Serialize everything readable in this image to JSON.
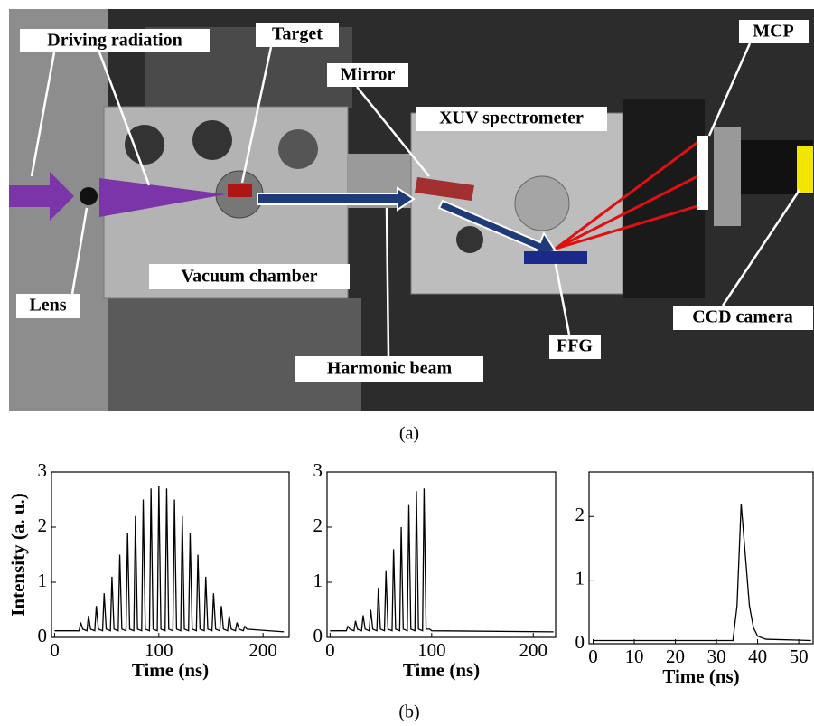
{
  "photo": {
    "labels": [
      "Driving  radiation",
      "Target",
      "Mirror",
      "XUV spectrometer",
      "MCP",
      "Lens",
      "Vacuum chamber",
      "CCD camera",
      "FFG",
      "Harmonic  beam"
    ]
  },
  "caption_a": "(a)",
  "caption_b": "(b)",
  "chart_data": [
    {
      "type": "line",
      "y_label": "Intensity (a. u.)",
      "x_label": "Time (ns)",
      "color": "#000000",
      "xlim": [
        -3,
        225
      ],
      "ylim": [
        0,
        3
      ],
      "xticks": [
        0,
        100,
        200
      ],
      "yticks": [
        0,
        1,
        2,
        3
      ],
      "x": [
        0,
        23.5,
        25,
        27,
        31,
        32.5,
        34.5,
        38.5,
        40,
        42,
        46,
        47.5,
        49.5,
        53.5,
        55,
        57,
        61,
        62.5,
        64.5,
        68.5,
        70,
        72,
        76,
        77.5,
        79.5,
        83.5,
        85,
        87,
        91,
        92.5,
        94.5,
        98.5,
        100,
        102,
        106,
        107.5,
        109.5,
        113.5,
        115,
        117,
        121,
        122.5,
        124.5,
        128.5,
        130,
        132,
        136,
        137.5,
        139.5,
        143.5,
        145,
        147,
        151,
        152.5,
        154.5,
        158.5,
        160,
        162,
        166,
        167.5,
        169.5,
        173.5,
        175,
        177,
        181,
        182.5,
        184.5,
        220
      ],
      "values": [
        0.12,
        0.12,
        0.27,
        0.15,
        0.12,
        0.39,
        0.15,
        0.12,
        0.57,
        0.15,
        0.12,
        0.8,
        0.15,
        0.12,
        1.1,
        0.15,
        0.12,
        1.5,
        0.15,
        0.12,
        1.9,
        0.15,
        0.12,
        2.2,
        0.15,
        0.12,
        2.5,
        0.15,
        0.12,
        2.7,
        0.15,
        0.12,
        2.75,
        0.15,
        0.12,
        2.7,
        0.15,
        0.12,
        2.5,
        0.15,
        0.12,
        2.2,
        0.15,
        0.12,
        1.9,
        0.15,
        0.12,
        1.5,
        0.15,
        0.12,
        1.1,
        0.15,
        0.12,
        0.8,
        0.15,
        0.12,
        0.57,
        0.15,
        0.12,
        0.39,
        0.15,
        0.12,
        0.27,
        0.15,
        0.12,
        0.2,
        0.15,
        0.1
      ]
    },
    {
      "type": "line",
      "x_label": "Time (ns)",
      "color": "#000000",
      "xlim": [
        -3,
        222
      ],
      "ylim": [
        0,
        3
      ],
      "xticks": [
        0,
        100,
        200
      ],
      "yticks": [
        0,
        1,
        2,
        3
      ],
      "x": [
        0,
        16,
        17.5,
        19.5,
        23.5,
        25,
        27,
        31,
        32.5,
        34.5,
        38.5,
        40,
        42,
        46,
        47.5,
        49.5,
        53.5,
        55,
        57,
        61,
        62.5,
        64.5,
        68.5,
        70,
        72,
        76,
        77.5,
        79.5,
        83.5,
        85,
        87,
        91,
        92.5,
        94.5,
        98,
        100,
        220
      ],
      "values": [
        0.12,
        0.12,
        0.2,
        0.15,
        0.12,
        0.3,
        0.15,
        0.12,
        0.4,
        0.15,
        0.12,
        0.5,
        0.15,
        0.12,
        0.9,
        0.15,
        0.12,
        1.2,
        0.15,
        0.12,
        1.6,
        0.15,
        0.12,
        2.0,
        0.15,
        0.12,
        2.4,
        0.15,
        0.12,
        2.65,
        0.15,
        0.12,
        2.7,
        0.15,
        0.15,
        0.12,
        0.1
      ]
    },
    {
      "type": "line",
      "x_label": "Time (ns)",
      "color": "#000000",
      "xlim": [
        -1,
        53.5
      ],
      "ylim": [
        0,
        2.7
      ],
      "xticks": [
        0,
        10,
        20,
        30,
        40,
        50
      ],
      "yticks": [
        0,
        1,
        2
      ],
      "x": [
        0,
        34,
        35,
        36,
        37,
        38,
        39,
        40,
        42,
        53
      ],
      "values": [
        0.05,
        0.05,
        0.6,
        2.2,
        1.4,
        0.6,
        0.25,
        0.12,
        0.07,
        0.05
      ]
    }
  ]
}
